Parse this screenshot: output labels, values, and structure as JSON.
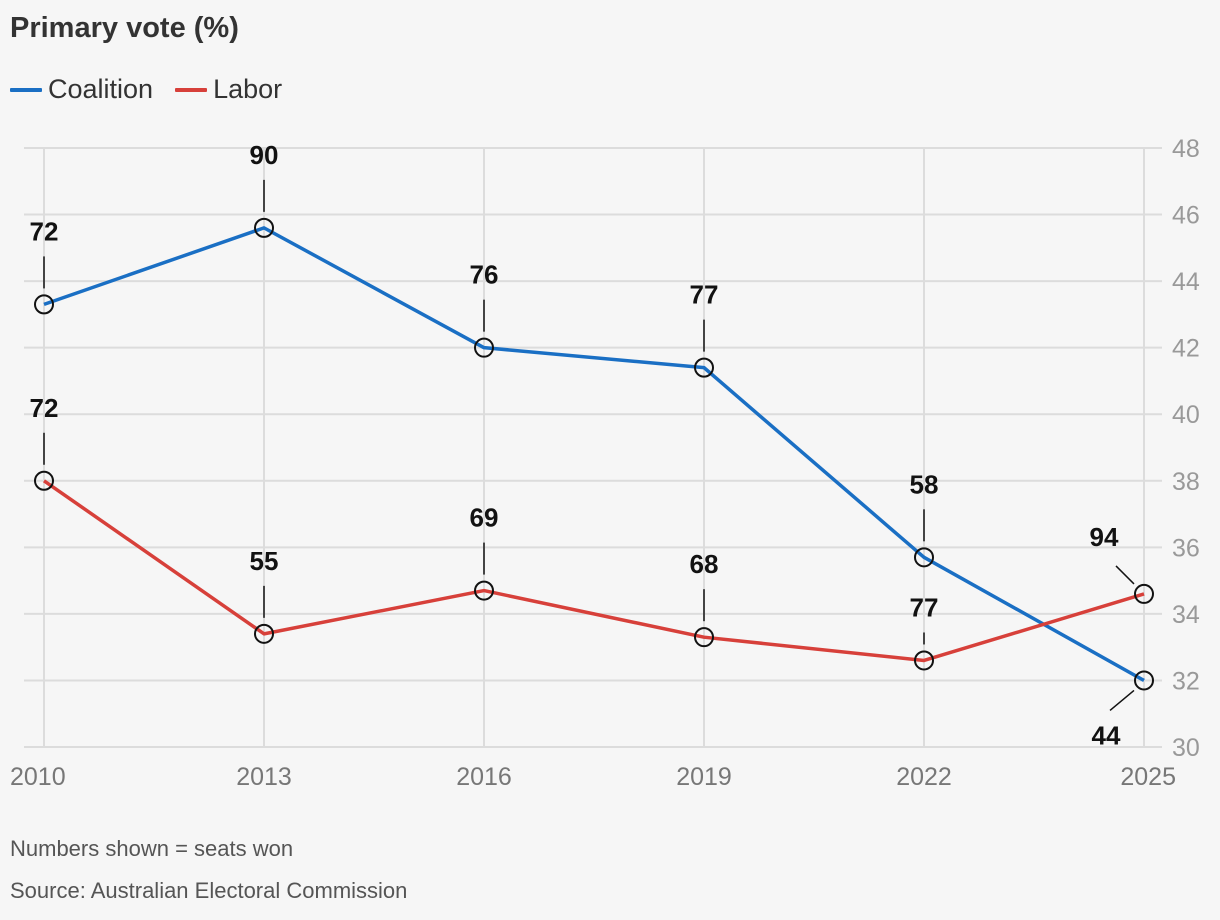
{
  "title": "Primary vote (%)",
  "legend": [
    {
      "name": "Coalition",
      "color": "#1a6fc4"
    },
    {
      "name": "Labor",
      "color": "#d7403a"
    }
  ],
  "note": "Numbers shown = seats won",
  "source": "Source: Australian Electoral Commission",
  "chart_data": {
    "type": "line",
    "title": "Primary vote (%)",
    "x": [
      "2010",
      "2013",
      "2016",
      "2019",
      "2022",
      "2025"
    ],
    "ylim": [
      30,
      48
    ],
    "yticks": [
      30,
      32,
      34,
      36,
      38,
      40,
      42,
      44,
      46,
      48
    ],
    "y_axis_side": "right",
    "grid": true,
    "legend_position": "top-left",
    "series": [
      {
        "name": "Coalition",
        "color": "#1a6fc4",
        "values": [
          43.3,
          45.6,
          42.0,
          41.4,
          35.7,
          32.0
        ],
        "seats": [
          "72",
          "90",
          "76",
          "77",
          "58",
          "44"
        ]
      },
      {
        "name": "Labor",
        "color": "#d7403a",
        "values": [
          38.0,
          33.4,
          34.7,
          33.3,
          32.6,
          34.6
        ],
        "seats": [
          "72",
          "55",
          "69",
          "68",
          "77",
          "94"
        ]
      }
    ]
  }
}
